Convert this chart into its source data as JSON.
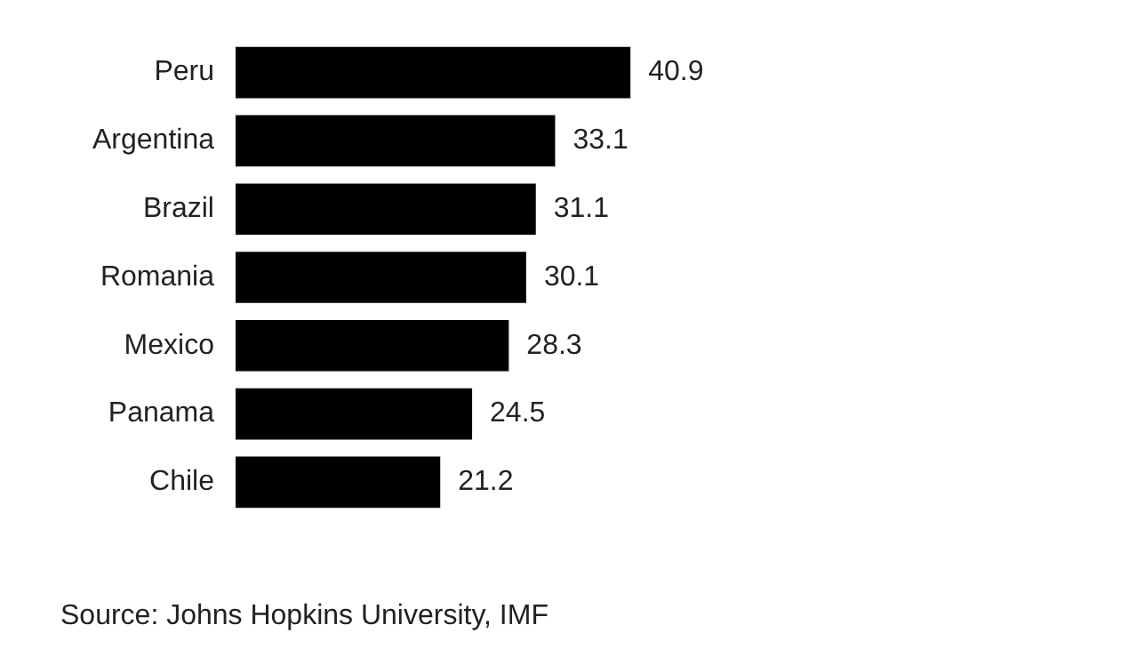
{
  "chart_data": {
    "type": "bar",
    "orientation": "horizontal",
    "categories": [
      "Peru",
      "Argentina",
      "Brazil",
      "Romania",
      "Mexico",
      "Panama",
      "Chile"
    ],
    "values": [
      40.9,
      33.1,
      31.1,
      30.1,
      28.3,
      24.5,
      21.2
    ],
    "color": "#000000",
    "data_labels": true,
    "legend": false,
    "tick_labels": "y",
    "annotations": [
      "Source: Johns Hopkins University, IMF"
    ]
  }
}
